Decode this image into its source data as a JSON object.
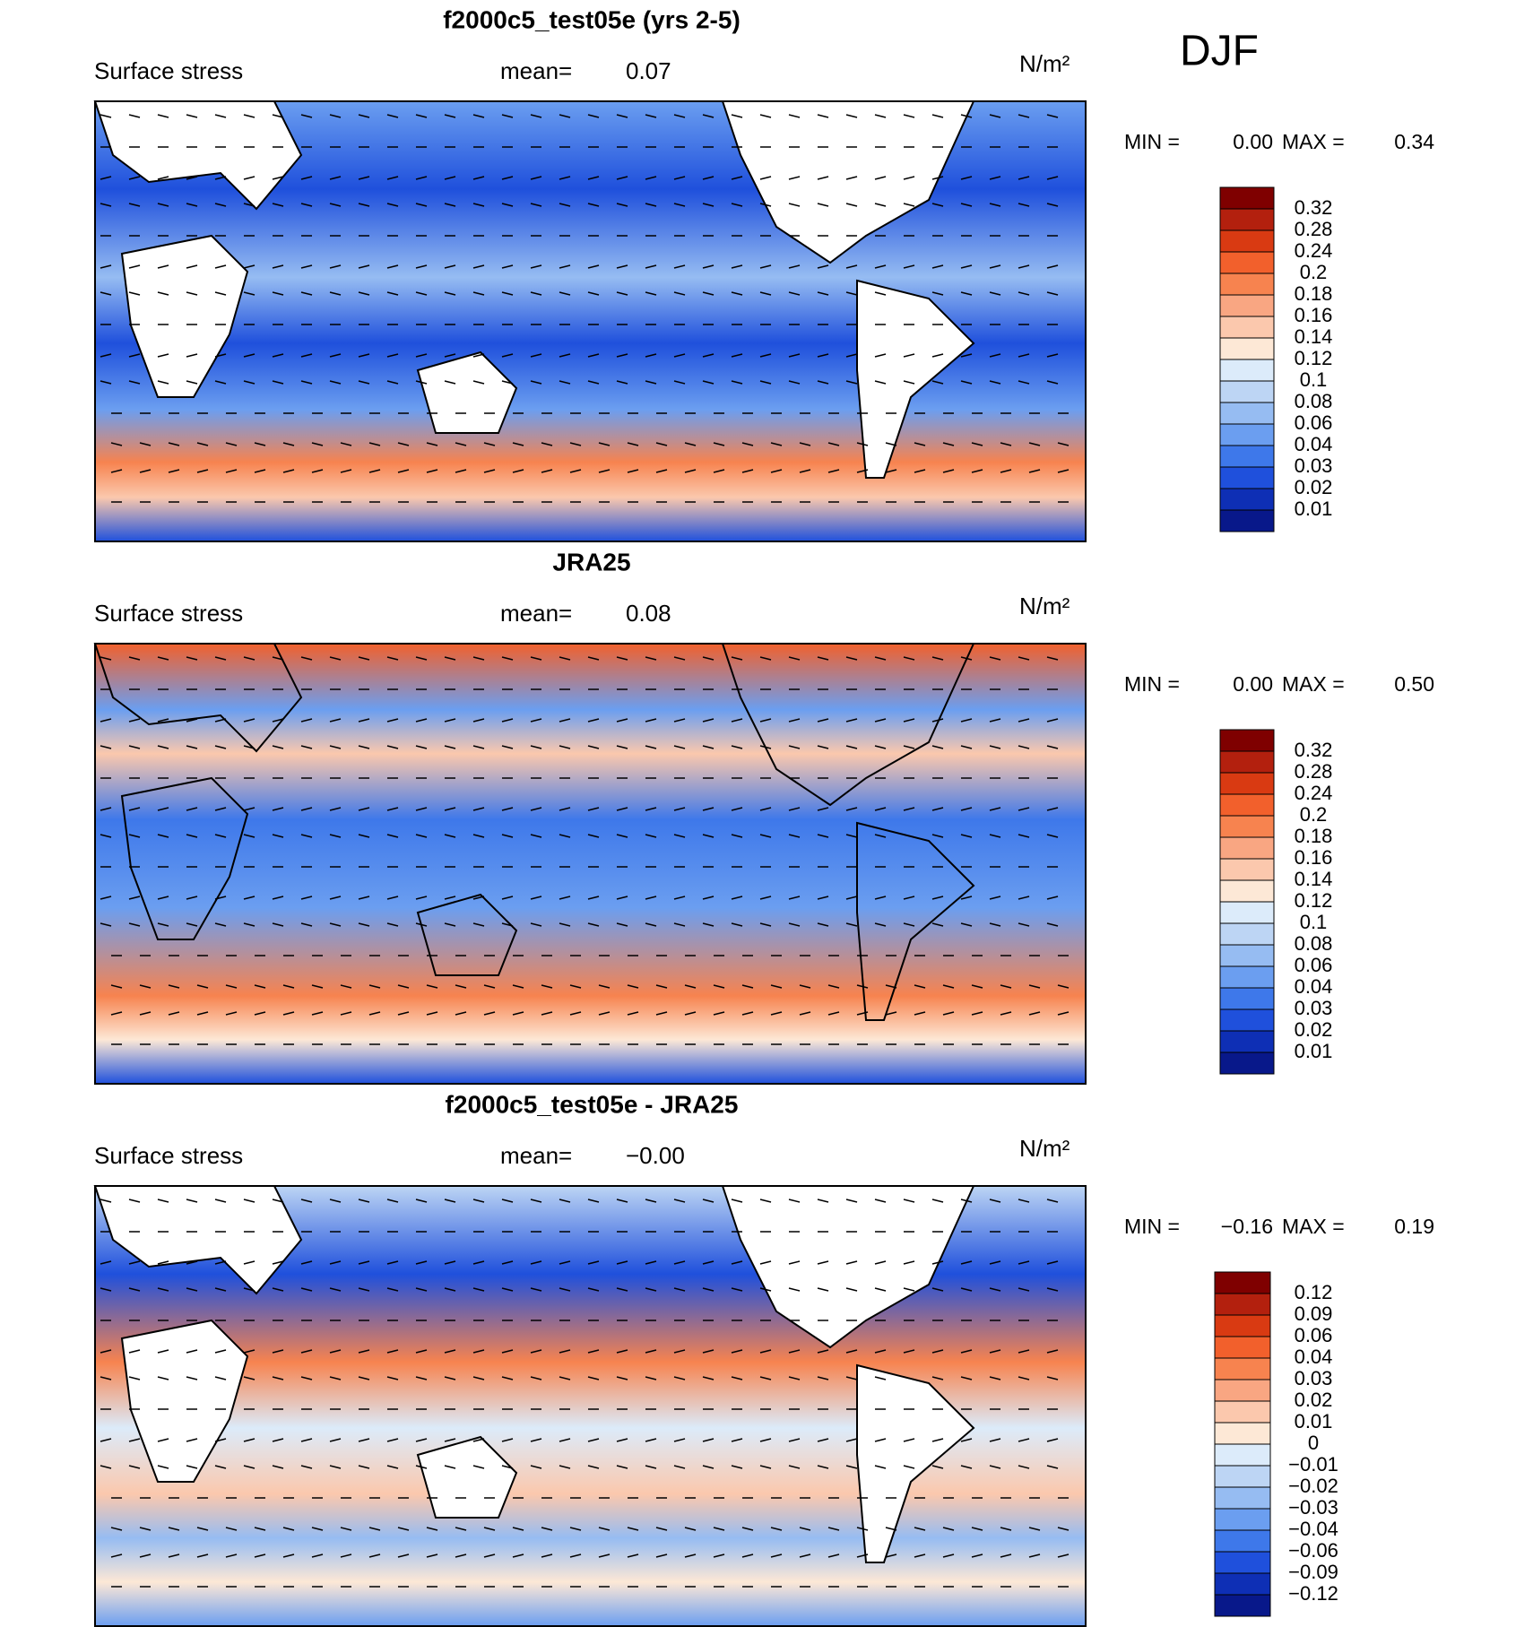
{
  "figure_label": "DJF",
  "panels": [
    {
      "title": "f2000c5_test05e (yrs 2-5)",
      "variable": "Surface stress",
      "mean_label": "mean=",
      "mean": "0.07",
      "units": "N/m²",
      "min_label": "MIN =",
      "min": "0.00",
      "max_label": "MAX =",
      "max": "0.34",
      "colorbar": {
        "labels": [
          "0.32",
          "0.28",
          "0.24",
          "0.2",
          "0.18",
          "0.16",
          "0.14",
          "0.12",
          "0.1",
          "0.08",
          "0.06",
          "0.04",
          "0.03",
          "0.02",
          "0.01"
        ],
        "colors": [
          "#7f0000",
          "#b3200e",
          "#d93a12",
          "#f2602c",
          "#f7834f",
          "#f9a682",
          "#fbc8ad",
          "#fde8d6",
          "#dcebfa",
          "#bdd5f4",
          "#96bcf2",
          "#6b9ef0",
          "#3e78ea",
          "#1f50dc",
          "#0e2fb5",
          "#08188a"
        ]
      }
    },
    {
      "title": "JRA25",
      "variable": "Surface stress",
      "mean_label": "mean=",
      "mean": "0.08",
      "units": "N/m²",
      "min_label": "MIN =",
      "min": "0.00",
      "max_label": "MAX =",
      "max": "0.50",
      "colorbar": {
        "labels": [
          "0.32",
          "0.28",
          "0.24",
          "0.2",
          "0.18",
          "0.16",
          "0.14",
          "0.12",
          "0.1",
          "0.08",
          "0.06",
          "0.04",
          "0.03",
          "0.02",
          "0.01"
        ],
        "colors": [
          "#7f0000",
          "#b3200e",
          "#d93a12",
          "#f2602c",
          "#f7834f",
          "#f9a682",
          "#fbc8ad",
          "#fde8d6",
          "#dcebfa",
          "#bdd5f4",
          "#96bcf2",
          "#6b9ef0",
          "#3e78ea",
          "#1f50dc",
          "#0e2fb5",
          "#08188a"
        ]
      }
    },
    {
      "title": "f2000c5_test05e - JRA25",
      "variable": "Surface stress",
      "mean_label": "mean=",
      "mean": "−0.00",
      "units": "N/m²",
      "min_label": "MIN =",
      "min": "−0.16",
      "max_label": "MAX =",
      "max": "0.19",
      "colorbar": {
        "labels": [
          "0.12",
          "0.09",
          "0.06",
          "0.04",
          "0.03",
          "0.02",
          "0.01",
          "0",
          "−0.01",
          "−0.02",
          "−0.03",
          "−0.04",
          "−0.06",
          "−0.09",
          "−0.12"
        ],
        "colors": [
          "#7f0000",
          "#b3200e",
          "#d93a12",
          "#f2602c",
          "#f7834f",
          "#f9a682",
          "#fbc8ad",
          "#fde8d6",
          "#dcebfa",
          "#bdd5f4",
          "#96bcf2",
          "#6b9ef0",
          "#3e78ea",
          "#1f50dc",
          "#0e2fb5",
          "#08188a"
        ]
      }
    }
  ]
}
